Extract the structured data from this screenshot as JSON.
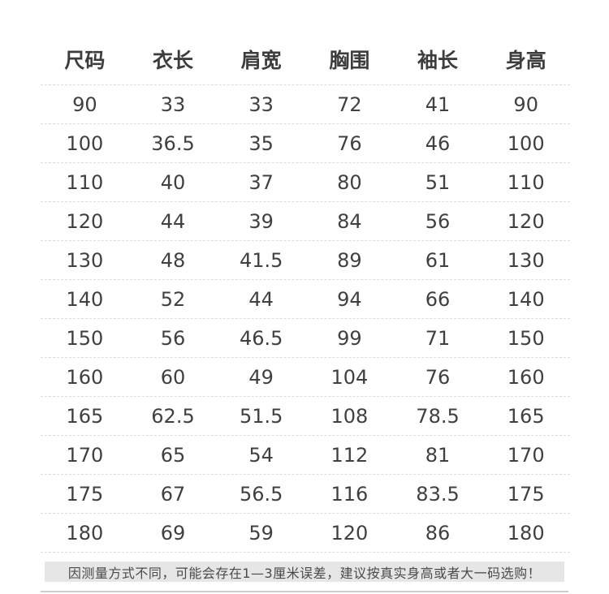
{
  "table": {
    "columns": [
      {
        "key": "size",
        "label": "尺码"
      },
      {
        "key": "garment-length",
        "label": "衣长"
      },
      {
        "key": "shoulder-width",
        "label": "肩宽"
      },
      {
        "key": "chest",
        "label": "胸围"
      },
      {
        "key": "sleeve-length",
        "label": "袖长"
      },
      {
        "key": "height",
        "label": "身高"
      }
    ],
    "rows": [
      [
        "90",
        "33",
        "33",
        "72",
        "41",
        "90"
      ],
      [
        "100",
        "36.5",
        "35",
        "76",
        "46",
        "100"
      ],
      [
        "110",
        "40",
        "37",
        "80",
        "51",
        "110"
      ],
      [
        "120",
        "44",
        "39",
        "84",
        "56",
        "120"
      ],
      [
        "130",
        "48",
        "41.5",
        "89",
        "61",
        "130"
      ],
      [
        "140",
        "52",
        "44",
        "94",
        "66",
        "140"
      ],
      [
        "150",
        "56",
        "46.5",
        "99",
        "71",
        "150"
      ],
      [
        "160",
        "60",
        "49",
        "104",
        "76",
        "160"
      ],
      [
        "165",
        "62.5",
        "51.5",
        "108",
        "78.5",
        "165"
      ],
      [
        "170",
        "65",
        "54",
        "112",
        "81",
        "170"
      ],
      [
        "175",
        "67",
        "56.5",
        "116",
        "83.5",
        "175"
      ],
      [
        "180",
        "69",
        "59",
        "120",
        "86",
        "180"
      ]
    ]
  },
  "note": {
    "text": "因测量方式不同，可能会存在1—3厘米误差，建议按真实身高或者大一码选购！"
  },
  "colors": {
    "header_text": "#3d3d3d",
    "cell_text": "#404040",
    "divider_dashed": "#dcdcdc",
    "note_background": "#e6e6e6",
    "note_text": "#4a4a4a",
    "bottom_line": "#cccccc",
    "page_background": "#ffffff"
  },
  "chart_data": {
    "type": "table",
    "title": "",
    "columns": [
      "尺码",
      "衣长",
      "肩宽",
      "胸围",
      "袖长",
      "身高"
    ],
    "rows": [
      [
        90,
        33,
        33,
        72,
        41,
        90
      ],
      [
        100,
        36.5,
        35,
        76,
        46,
        100
      ],
      [
        110,
        40,
        37,
        80,
        51,
        110
      ],
      [
        120,
        44,
        39,
        84,
        56,
        120
      ],
      [
        130,
        48,
        41.5,
        89,
        61,
        130
      ],
      [
        140,
        52,
        44,
        94,
        66,
        140
      ],
      [
        150,
        56,
        46.5,
        99,
        71,
        150
      ],
      [
        160,
        60,
        49,
        104,
        76,
        160
      ],
      [
        165,
        62.5,
        51.5,
        108,
        78.5,
        165
      ],
      [
        170,
        65,
        54,
        112,
        81,
        170
      ],
      [
        175,
        67,
        56.5,
        116,
        83.5,
        175
      ],
      [
        180,
        69,
        59,
        120,
        86,
        180
      ]
    ],
    "footnote": "因测量方式不同，可能会存在1—3厘米误差，建议按真实身高或者大一码选购！",
    "layout_hints": {
      "grid": "dashed horizontal row separators only",
      "alignment": "all cells centered"
    }
  }
}
